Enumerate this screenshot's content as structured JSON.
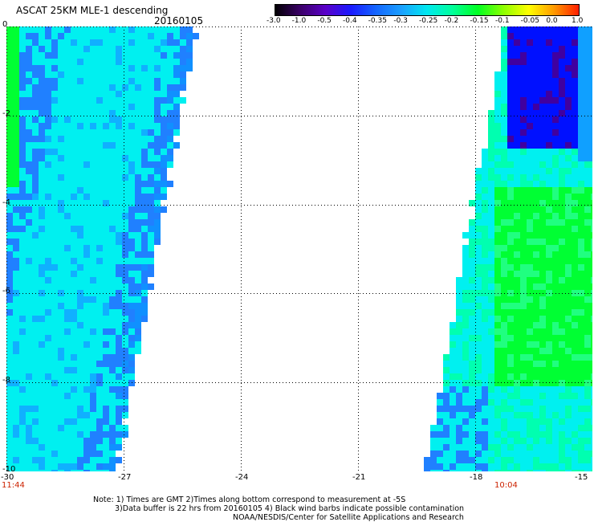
{
  "header": {
    "title": "ASCAT 25KM MLE-1 descending",
    "date": "20160105"
  },
  "colorbar": {
    "labels": [
      "-3.0",
      "-1.0",
      "-0.5",
      "-0.4",
      "-0.35",
      "-0.3",
      "-0.25",
      "-0.2",
      "-0.15",
      "-0.1",
      "-0.05",
      "0.0",
      "1.0"
    ],
    "colors": [
      "#000000",
      "#3a0066",
      "#5a00c8",
      "#1a1aff",
      "#1466ff",
      "#1aa0ff",
      "#00e8f0",
      "#00ff9a",
      "#00ff22",
      "#8cff00",
      "#ffff00",
      "#ff9900",
      "#ff1a00"
    ]
  },
  "map": {
    "lon_min": -30,
    "lon_max": -15,
    "lat_min": -10,
    "lat_max": 0,
    "lon_ticks": [
      "-30",
      "-27",
      "-24",
      "-21",
      "-18",
      "-15"
    ],
    "lat_ticks": [
      "0",
      "-2",
      "-4",
      "-6",
      "-8",
      "-10"
    ],
    "pass_times": {
      "left": "11:44",
      "right": "10:04"
    },
    "swaths": [
      "left",
      "right"
    ]
  },
  "notes": {
    "line1": "Note: 1) Times are GMT 2)Times along bottom correspond to measurement at -5S",
    "line2": "3)Data buffer is 22 hrs from 20160105 4) Black wind barbs indicate possible contamination",
    "line3": "NOAA/NESDIS/Center for Satellite Applications and Research"
  },
  "colors": {
    "grid": "#000000",
    "time_label": "#cc2200",
    "cyan": "#00f0f0",
    "green": "#00ff33",
    "blue": "#2080ff",
    "dark_blue": "#0010ff",
    "purple": "#4000a0"
  }
}
